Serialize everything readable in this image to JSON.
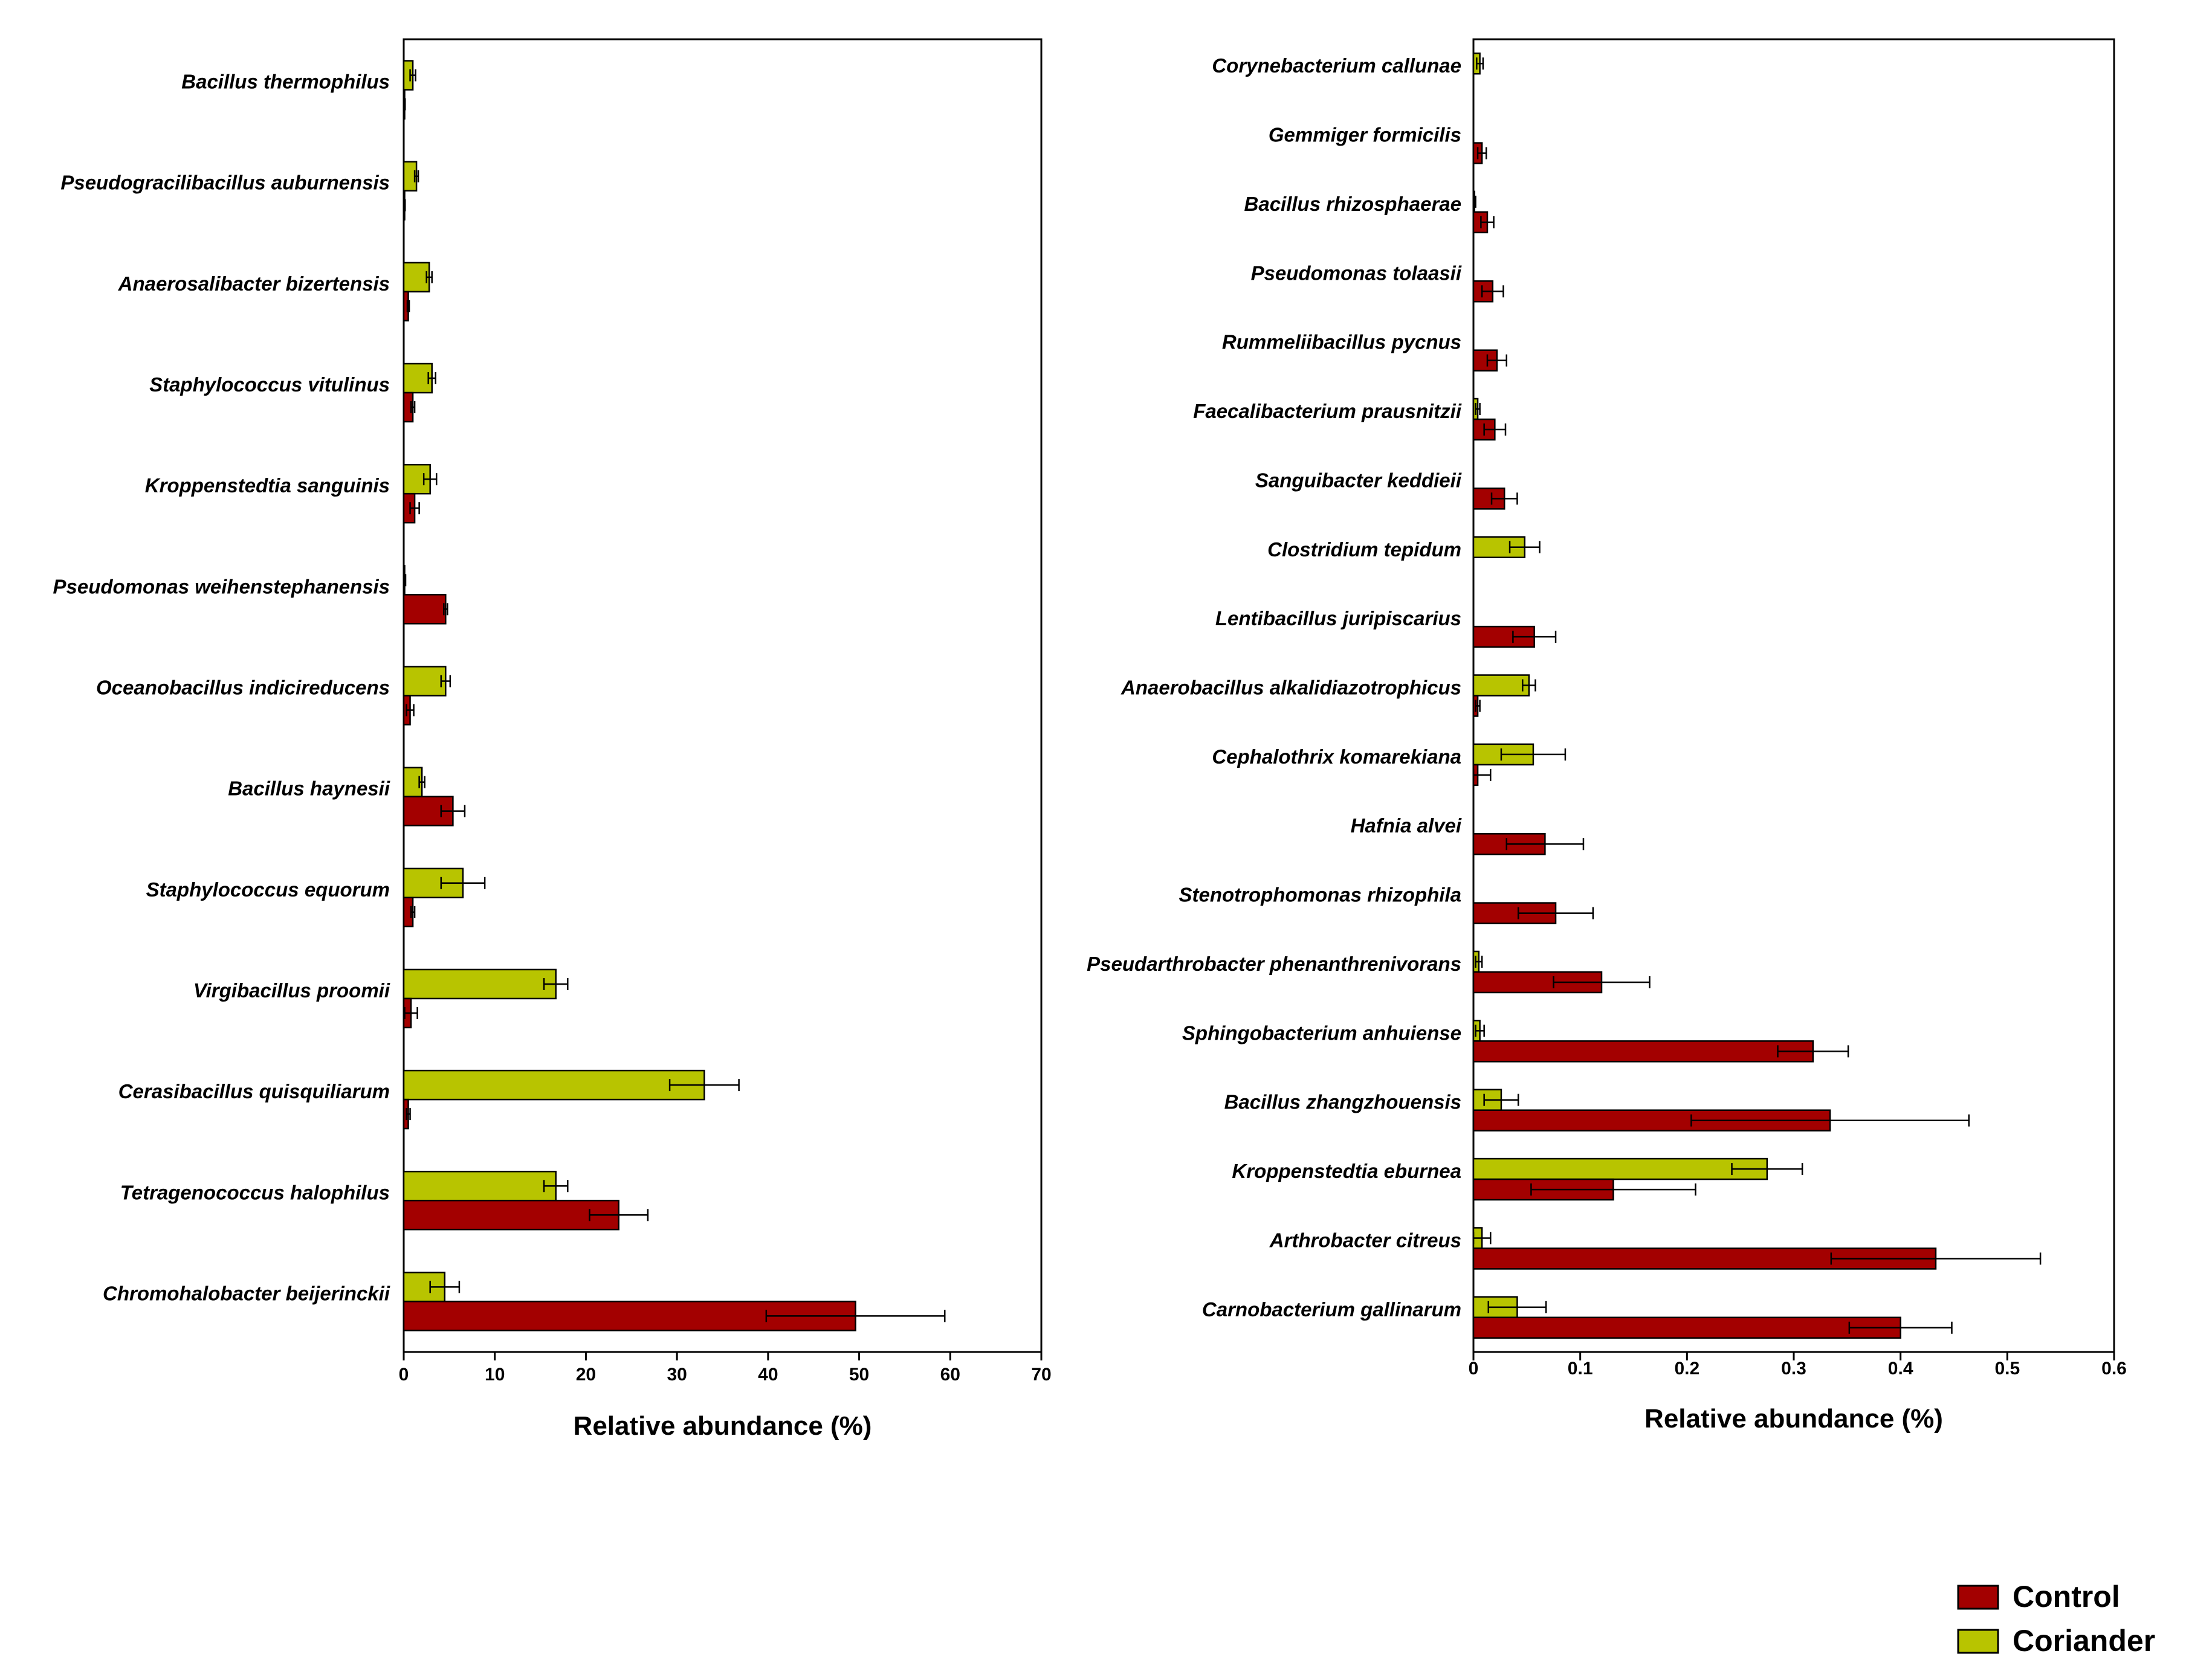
{
  "chart_data": [
    {
      "type": "bar",
      "orientation": "horizontal",
      "title": "",
      "xlabel": "Relative abundance (%)",
      "ylabel": "",
      "xlim": [
        0,
        70
      ],
      "xticks": [
        0,
        10,
        20,
        30,
        40,
        50,
        60,
        70
      ],
      "grid": false,
      "categories": [
        "Bacillus thermophilus",
        "Pseudogracilibacillus auburnensis",
        "Anaerosalibacter bizertensis",
        "Staphylococcus vitulinus",
        "Kroppenstedtia sanguinis",
        "Pseudomonas weihenstephanensis",
        "Oceanobacillus indicireducens",
        "Bacillus haynesii",
        "Staphylococcus equorum",
        "Virgibacillus proomii",
        "Cerasibacillus quisquiliarum",
        "Tetragenococcus halophilus",
        "Chromohalobacter beijerinckii"
      ],
      "series": [
        {
          "name": "Coriander",
          "color": "#b8c400",
          "values": [
            1.0,
            1.4,
            2.8,
            3.1,
            2.9,
            0.1,
            4.6,
            2.0,
            6.5,
            16.7,
            33.0,
            16.7,
            4.5
          ],
          "errors": [
            0.3,
            0.2,
            0.3,
            0.4,
            0.7,
            0.1,
            0.5,
            0.3,
            2.4,
            1.3,
            3.8,
            1.3,
            1.6
          ]
        },
        {
          "name": "Control",
          "color": "#a30000",
          "values": [
            0.1,
            0.1,
            0.5,
            1.0,
            1.2,
            4.6,
            0.7,
            5.4,
            1.0,
            0.8,
            0.5,
            23.6,
            49.6
          ],
          "errors": [
            0.05,
            0.05,
            0.1,
            0.2,
            0.5,
            0.2,
            0.4,
            1.3,
            0.2,
            0.7,
            0.2,
            3.2,
            9.8
          ]
        }
      ]
    },
    {
      "type": "bar",
      "orientation": "horizontal",
      "title": "",
      "xlabel": "Relative abundance (%)",
      "ylabel": "",
      "xlim": [
        0,
        0.6
      ],
      "xticks": [
        0,
        0.1,
        0.2,
        0.3,
        0.4,
        0.5,
        0.6
      ],
      "grid": false,
      "categories": [
        "Corynebacterium callunae",
        "Gemmiger formicilis",
        "Bacillus rhizosphaerae",
        "Pseudomonas tolaasii",
        "Rummeliibacillus pycnus",
        "Faecalibacterium prausnitzii",
        "Sanguibacter keddieii",
        "Clostridium tepidum",
        "Lentibacillus juripiscarius",
        "Anaerobacillus alkalidiazotrophicus",
        "Cephalothrix komarekiana",
        "Hafnia alvei",
        "Stenotrophomonas rhizophila",
        "Pseudarthrobacter phenanthrenivorans",
        "Sphingobacterium anhuiense",
        "Bacillus zhangzhouensis",
        "Kroppenstedtia eburnea",
        "Arthrobacter citreus",
        "Carnobacterium gallinarum"
      ],
      "series": [
        {
          "name": "Coriander",
          "color": "#b8c400",
          "values": [
            0.006,
            0.0,
            0.001,
            0.0,
            0.0,
            0.004,
            0.0,
            0.048,
            0.0,
            0.052,
            0.056,
            0.0,
            0.0,
            0.005,
            0.006,
            0.026,
            0.275,
            0.008,
            0.041
          ],
          "errors": [
            0.003,
            0.0,
            0.001,
            0.0,
            0.0,
            0.002,
            0.0,
            0.014,
            0.0,
            0.006,
            0.03,
            0.0,
            0.0,
            0.003,
            0.004,
            0.016,
            0.033,
            0.008,
            0.027
          ]
        },
        {
          "name": "Control",
          "color": "#a30000",
          "values": [
            0.0,
            0.008,
            0.013,
            0.018,
            0.022,
            0.02,
            0.029,
            0.0,
            0.057,
            0.004,
            0.004,
            0.067,
            0.077,
            0.12,
            0.318,
            0.334,
            0.131,
            0.433,
            0.4
          ],
          "errors": [
            0.0,
            0.004,
            0.006,
            0.01,
            0.009,
            0.01,
            0.012,
            0.0,
            0.02,
            0.002,
            0.012,
            0.036,
            0.035,
            0.045,
            0.033,
            0.13,
            0.077,
            0.098,
            0.048
          ]
        }
      ]
    }
  ],
  "legend": {
    "position": "bottom-right",
    "items": [
      {
        "label": "Control",
        "color": "#a30000"
      },
      {
        "label": "Coriander",
        "color": "#b8c400"
      }
    ]
  }
}
